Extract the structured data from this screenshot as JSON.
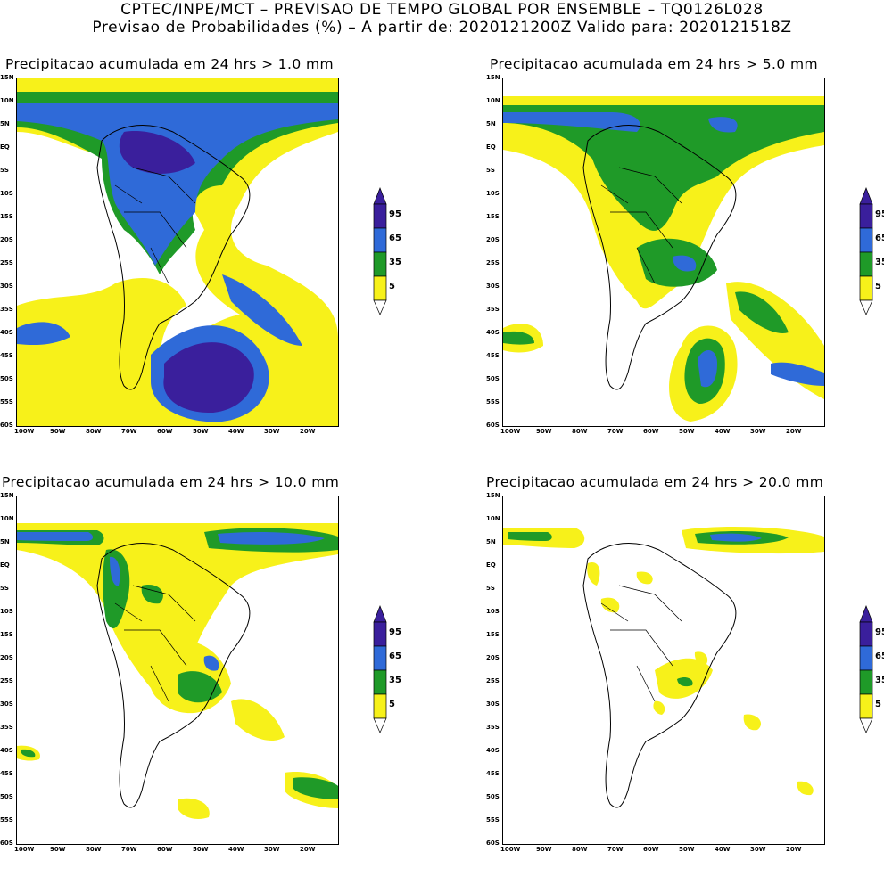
{
  "header": {
    "line1": "CPTEC/INPE/MCT – PREVISAO DE TEMPO GLOBAL POR ENSEMBLE – TQ0126L028",
    "line2": "Previsao de Probabilidades (%) –  A partir de: 2020121200Z  Valido para: 2020121518Z"
  },
  "axes": {
    "lat_labels": [
      "15N",
      "10N",
      "5N",
      "EQ",
      "5S",
      "10S",
      "15S",
      "20S",
      "25S",
      "30S",
      "35S",
      "40S",
      "45S",
      "50S",
      "55S",
      "60S"
    ],
    "lon_labels": [
      "100W",
      "90W",
      "80W",
      "70W",
      "60W",
      "50W",
      "40W",
      "30W",
      "20W"
    ]
  },
  "legend": {
    "levels": [
      "95",
      "65",
      "35",
      "5"
    ],
    "colors": {
      "c95": "#3a1f9c",
      "c65": "#2f6ad8",
      "c35": "#1f9a28",
      "c5": "#f7f11a",
      "none": "#ffffff"
    }
  },
  "panels": [
    {
      "title": "Precipitacao acumulada em 24 hrs > 1.0 mm"
    },
    {
      "title": "Precipitacao acumulada em 24 hrs > 5.0 mm"
    },
    {
      "title": "Precipitacao acumulada em 24 hrs > 10.0 mm"
    },
    {
      "title": "Precipitacao acumulada em 24 hrs > 20.0 mm"
    }
  ]
}
